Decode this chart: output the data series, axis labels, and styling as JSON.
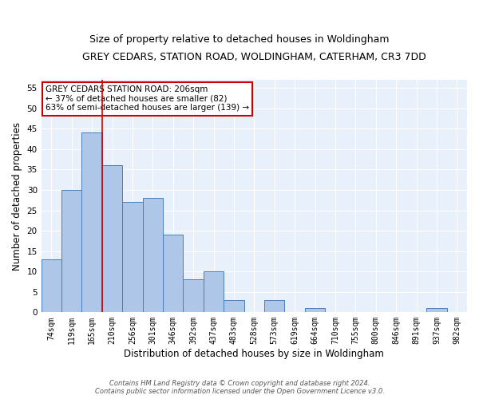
{
  "title": "GREY CEDARS, STATION ROAD, WOLDINGHAM, CATERHAM, CR3 7DD",
  "subtitle": "Size of property relative to detached houses in Woldingham",
  "xlabel": "Distribution of detached houses by size in Woldingham",
  "ylabel": "Number of detached properties",
  "categories": [
    "74sqm",
    "119sqm",
    "165sqm",
    "210sqm",
    "256sqm",
    "301sqm",
    "346sqm",
    "392sqm",
    "437sqm",
    "483sqm",
    "528sqm",
    "573sqm",
    "619sqm",
    "664sqm",
    "710sqm",
    "755sqm",
    "800sqm",
    "846sqm",
    "891sqm",
    "937sqm",
    "982sqm"
  ],
  "values": [
    13,
    30,
    44,
    36,
    27,
    28,
    19,
    8,
    10,
    3,
    0,
    3,
    0,
    1,
    0,
    0,
    0,
    0,
    0,
    1,
    0
  ],
  "bar_color": "#aec6e8",
  "bar_edge_color": "#4a7eba",
  "vline_x_index": 3,
  "vline_color": "#cc0000",
  "annotation_text": "GREY CEDARS STATION ROAD: 206sqm\n← 37% of detached houses are smaller (82)\n63% of semi-detached houses are larger (139) →",
  "annotation_box_color": "#ffffff",
  "annotation_box_edge": "#cc0000",
  "ylim": [
    0,
    57
  ],
  "yticks": [
    0,
    5,
    10,
    15,
    20,
    25,
    30,
    35,
    40,
    45,
    50,
    55
  ],
  "footer1": "Contains HM Land Registry data © Crown copyright and database right 2024.",
  "footer2": "Contains public sector information licensed under the Open Government Licence v3.0.",
  "plot_bg_color": "#e8f0fb",
  "title_fontsize": 9,
  "subtitle_fontsize": 9,
  "tick_fontsize": 7,
  "label_fontsize": 8.5,
  "annotation_fontsize": 7.5,
  "footer_fontsize": 6
}
